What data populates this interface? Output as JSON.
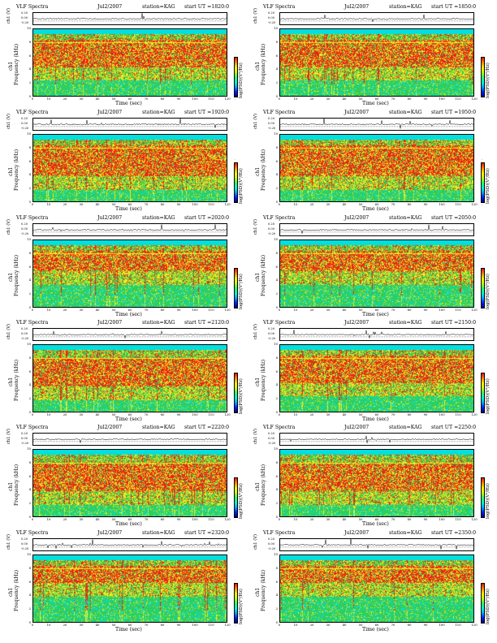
{
  "common": {
    "ts_ylabel": "ch1 (V)",
    "ts_ticks": [
      "0.20",
      "0.00",
      "-0.20"
    ],
    "spec_ylabel": "ch1\nFrequency (kHz)",
    "spec_ylabel_line1": "ch1",
    "spec_ylabel_line2": "Frequency (kHz)",
    "xlabel": "Time (sec)",
    "x_ticks": [
      "0",
      "10",
      "20",
      "30",
      "40",
      "50",
      "60",
      "70",
      "80",
      "90",
      "100",
      "110",
      "120"
    ],
    "y_ticks": [
      "0",
      "2",
      "4",
      "6",
      "8",
      "10"
    ],
    "colorbar_label": "log(PSD)(V²/Hz)",
    "colorbar_ticks_top": "-",
    "colorbar_ticks_bottom": "-",
    "colors": {
      "background": "#00e0e0",
      "green": "#33cc55",
      "yellow": "#eeee22",
      "red": "#ee2211",
      "blue": "#2255ff"
    }
  },
  "panels": [
    {
      "title": "VLF Spectra",
      "date": "Jul2/2007",
      "station": "station=KAG",
      "start": "start  UT  =1820:0"
    },
    {
      "title": "VLF Spectra",
      "date": "Jul2/2007",
      "station": "station=KAG",
      "start": "start  UT  =1850:0"
    },
    {
      "title": "VLF Spectra",
      "date": "Jul2/2007",
      "station": "station=KAG",
      "start": "start  UT  =1920:0"
    },
    {
      "title": "VLF Spectra",
      "date": "Jul2/2007",
      "station": "station=KAG",
      "start": "start  UT  =1950:0"
    },
    {
      "title": "VLF Spectra",
      "date": "Jul2/2007",
      "station": "station=KAG",
      "start": "start  UT  =2020:0"
    },
    {
      "title": "VLF Spectra",
      "date": "Jul2/2007",
      "station": "station=KAG",
      "start": "start  UT  =2050:0"
    },
    {
      "title": "VLF Spectra",
      "date": "Jul2/2007",
      "station": "station=KAG",
      "start": "start  UT  =2120:0"
    },
    {
      "title": "VLF Spectra",
      "date": "Jul2/2007",
      "station": "station=KAG",
      "start": "start  UT  =2150:0"
    },
    {
      "title": "VLF Spectra",
      "date": "Jul2/2007",
      "station": "station=KAG",
      "start": "start  UT  =2220:0"
    },
    {
      "title": "VLF Spectra",
      "date": "Jul2/2007",
      "station": "station=KAG",
      "start": "start  UT  =2250:0"
    },
    {
      "title": "VLF Spectra",
      "date": "Jul2/2007",
      "station": "station=KAG",
      "start": "start  UT  =2320:0"
    },
    {
      "title": "VLF Spectra",
      "date": "Jul2/2007",
      "station": "station=KAG",
      "start": "start  UT  =2350:0"
    }
  ],
  "chart_data": {
    "type": "heatmap",
    "title": "VLF Spectra",
    "xlabel": "Time (sec)",
    "ylabel": "Frequency (kHz)",
    "xlim": [
      0,
      120
    ],
    "ylim": [
      0,
      10
    ],
    "ts_ylim": [
      -0.2,
      0.2
    ],
    "colorbar_label": "log(PSD)(V²/Hz)",
    "panels_start_ut": [
      "1820:0",
      "1850:0",
      "1920:0",
      "1950:0",
      "2020:0",
      "2050:0",
      "2120:0",
      "2150:0",
      "2220:0",
      "2250:0",
      "2320:0",
      "2350:0"
    ],
    "red_band_khz": [
      [
        4.5,
        8.5
      ],
      [
        4.5,
        8.5
      ],
      [
        4,
        8.5
      ],
      [
        4,
        8.5
      ],
      [
        5.5,
        8.5
      ],
      [
        5.5,
        8.5
      ],
      [
        4,
        8
      ],
      [
        4.5,
        8.5
      ],
      [
        4,
        8
      ],
      [
        4,
        8
      ],
      [
        6,
        8.5
      ],
      [
        6,
        8.5
      ]
    ]
  }
}
